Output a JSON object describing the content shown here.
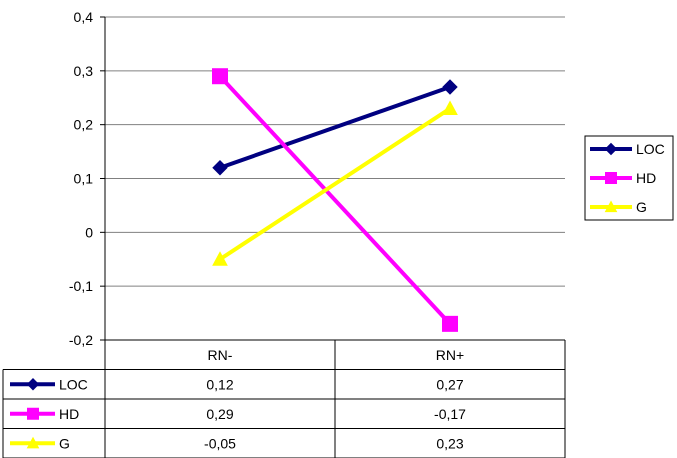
{
  "chart_data": {
    "type": "line",
    "categories": [
      "RN-",
      "RN+"
    ],
    "ylim": [
      -0.2,
      0.4
    ],
    "yticks": [
      "0,4",
      "0,3",
      "0,2",
      "0,1",
      "0",
      "-0,1",
      "-0,2"
    ],
    "ytick_values": [
      0.4,
      0.3,
      0.2,
      0.1,
      0,
      -0.1,
      -0.2
    ],
    "grid": true,
    "legend_position": "right",
    "series": [
      {
        "name": "LOC",
        "color": "#000080",
        "marker": "diamond",
        "values": [
          0.12,
          0.27
        ],
        "labels": [
          "0,12",
          "0,27"
        ]
      },
      {
        "name": "HD",
        "color": "#FF00FF",
        "marker": "square",
        "values": [
          0.29,
          -0.17
        ],
        "labels": [
          "0,29",
          "-0,17"
        ]
      },
      {
        "name": "G",
        "color": "#FFFF00",
        "marker": "triangle",
        "values": [
          -0.05,
          0.23
        ],
        "labels": [
          "-0,05",
          "0,23"
        ]
      }
    ]
  }
}
